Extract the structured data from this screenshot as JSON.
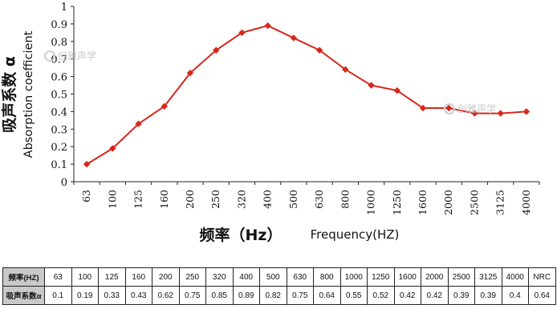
{
  "chart_data": {
    "type": "line",
    "categories": [
      "63",
      "100",
      "125",
      "160",
      "200",
      "250",
      "320",
      "400",
      "500",
      "630",
      "800",
      "1000",
      "1250",
      "1600",
      "2000",
      "2500",
      "3125",
      "4000"
    ],
    "series": [
      {
        "name": "吸声系数α",
        "values": [
          0.1,
          0.19,
          0.33,
          0.43,
          0.62,
          0.75,
          0.85,
          0.89,
          0.82,
          0.75,
          0.64,
          0.55,
          0.52,
          0.42,
          0.42,
          0.39,
          0.39,
          0.4
        ]
      }
    ],
    "ylim": [
      0,
      1
    ],
    "yticks": [
      "0",
      "0.1",
      "0.2",
      "0.3",
      "0.4",
      "0.5",
      "0.6",
      "0.7",
      "0.8",
      "0.9",
      "1"
    ],
    "ylabel_cn": "吸声系数 α",
    "ylabel_en": "Absorption coefficient",
    "xlabel_cn": "频率（Hz）",
    "xlabel_en": "Frequency(HZ)",
    "line_color": "#d6281c",
    "grid": false
  },
  "watermark_text": "创雅声学",
  "table": {
    "row1_header": "频率(HZ)",
    "row2_header": "吸声系数α",
    "frequencies": [
      "63",
      "100",
      "125",
      "160",
      "200",
      "250",
      "320",
      "400",
      "500",
      "630",
      "800",
      "1000",
      "1250",
      "1600",
      "2000",
      "2500",
      "3125",
      "4000",
      "NRC"
    ],
    "values": [
      "0.1",
      "0.19",
      "0.33",
      "0.43",
      "0.62",
      "0.75",
      "0.85",
      "0.89",
      "0.82",
      "0.75",
      "0.64",
      "0.55",
      "0.52",
      "0.42",
      "0.42",
      "0.39",
      "0.39",
      "0.4",
      "0.64"
    ]
  }
}
